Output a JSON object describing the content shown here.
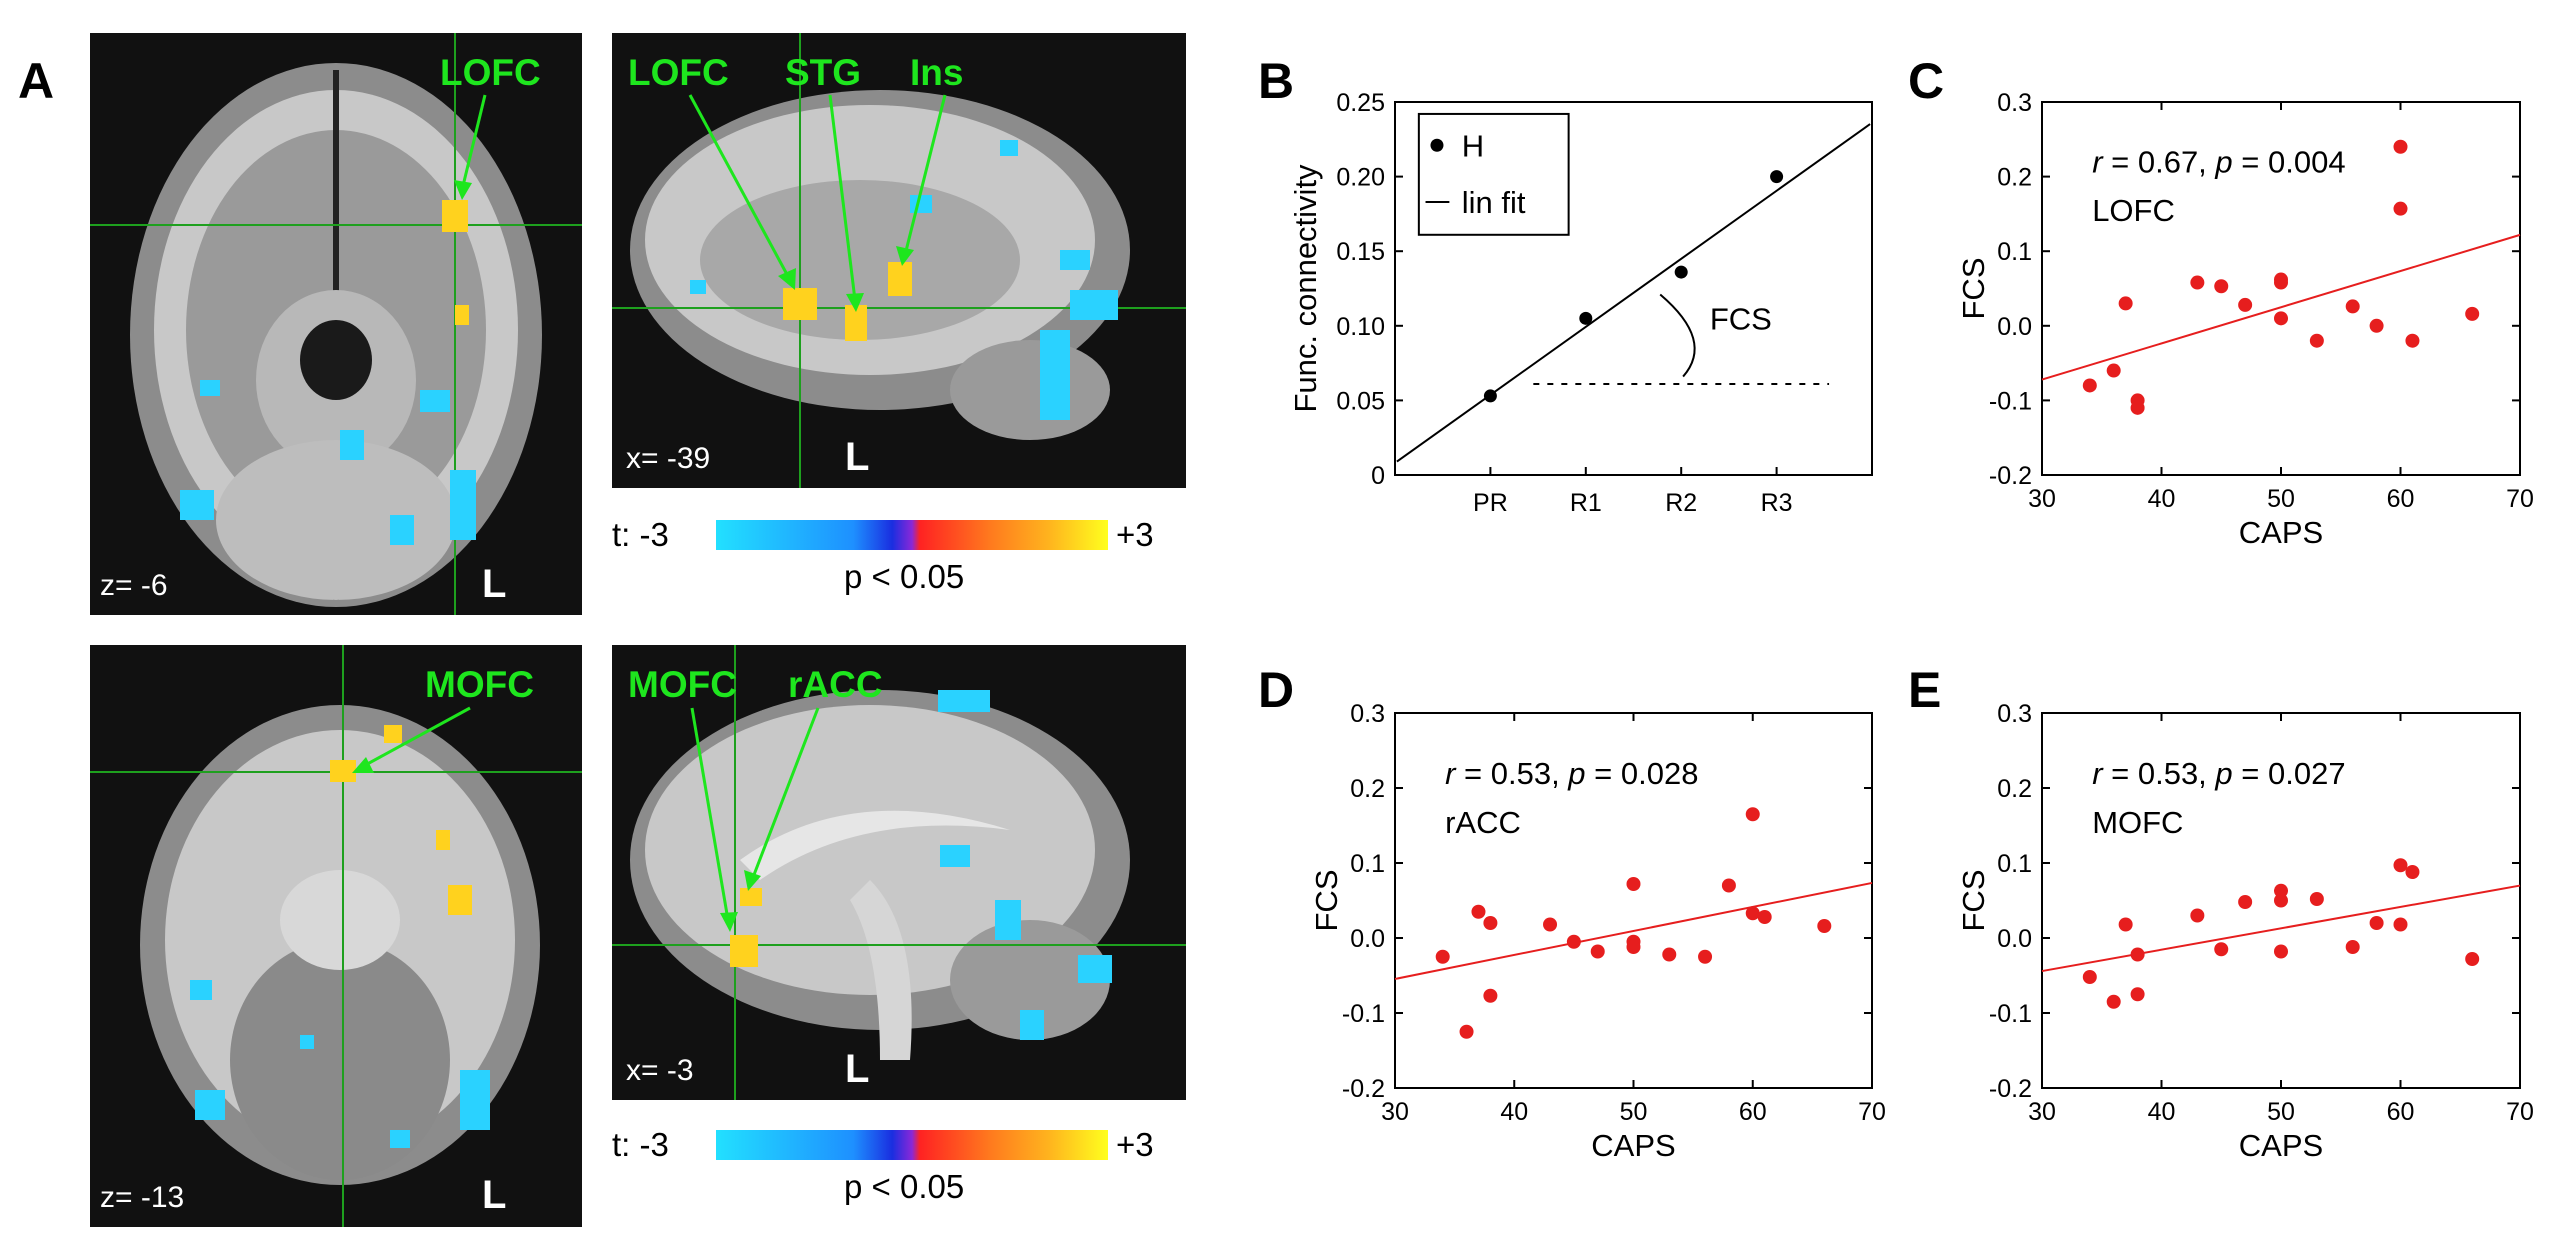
{
  "panel_labels": {
    "a": "A",
    "b": "B",
    "c": "C",
    "d": "D",
    "e": "E"
  },
  "brain": {
    "panels": [
      {
        "id": "axial1",
        "coord": "z= -6",
        "orient": "L",
        "regions": [
          "LOFC"
        ]
      },
      {
        "id": "sag1",
        "coord": "x= -39",
        "orient": "L",
        "regions": [
          "LOFC",
          "STG",
          "Ins"
        ]
      },
      {
        "id": "axial2",
        "coord": "z= -13",
        "orient": "L",
        "regions": [
          "MOFC"
        ]
      },
      {
        "id": "sag2",
        "coord": "x= -3",
        "orient": "L",
        "regions": [
          "MOFC",
          "rACC"
        ]
      }
    ],
    "colorbar": {
      "left": "t: -3",
      "right": "+3",
      "threshold": "p < 0.05",
      "colors": [
        "#22e0ff",
        "#1e90ff",
        "#1a2ee0",
        "#8a28d8",
        "#ff2222",
        "#ff7a1e",
        "#ffb41e",
        "#ffff1e"
      ]
    },
    "colors": {
      "label": "#1ee61e",
      "overlay_pos": "#ffd21e",
      "overlay_neg": "#2ad2ff",
      "bg": "#111111"
    }
  },
  "chart_data": [
    {
      "id": "B",
      "type": "line",
      "title": "",
      "xlabel": "",
      "ylabel": "Func. connectivity",
      "categories": [
        "PR",
        "R1",
        "R2",
        "R3"
      ],
      "xlim": [
        -1,
        4
      ],
      "ylim": [
        0,
        0.25
      ],
      "yticks": [
        "0",
        "0.05",
        "0.10",
        "0.15",
        "0.20",
        "0.25"
      ],
      "ytick_values": [
        0,
        0.05,
        0.1,
        0.15,
        0.2,
        0.25
      ],
      "series": [
        {
          "name": "H",
          "values": [
            0.053,
            0.105,
            0.136,
            0.2
          ]
        }
      ],
      "fit": {
        "name": "lin fit",
        "slope": 0.0456,
        "intercept": 0.0537
      },
      "baseline": 0.061,
      "annotation": "FCS",
      "legend": [
        "H",
        "lin fit"
      ]
    },
    {
      "id": "C",
      "type": "scatter",
      "xlabel": "CAPS",
      "ylabel": "FCS",
      "xlim": [
        30,
        70
      ],
      "ylim": [
        -0.2,
        0.3
      ],
      "xticks": [
        "30",
        "40",
        "50",
        "60",
        "70"
      ],
      "yticks": [
        "-0.2",
        "-0.1",
        "0.0",
        "0.1",
        "0.2",
        "0.3"
      ],
      "stats": {
        "r": "r",
        "r_text": " = 0.67, ",
        "p": "p",
        "p_text": " = 0.004"
      },
      "region": "LOFC",
      "x": [
        34,
        36,
        37,
        38,
        38,
        43,
        45,
        47,
        50,
        50,
        50,
        53,
        56,
        58,
        60,
        60,
        61,
        66
      ],
      "y": [
        -0.08,
        -0.06,
        0.03,
        -0.1,
        -0.11,
        0.058,
        0.053,
        0.028,
        0.062,
        0.058,
        0.01,
        -0.02,
        0.026,
        0.0,
        0.24,
        0.157,
        -0.02,
        0.016
      ],
      "fit": {
        "slope": 0.00485,
        "intercept": -0.2176
      }
    },
    {
      "id": "D",
      "type": "scatter",
      "xlabel": "CAPS",
      "ylabel": "FCS",
      "xlim": [
        30,
        70
      ],
      "ylim": [
        -0.2,
        0.3
      ],
      "xticks": [
        "30",
        "40",
        "50",
        "60",
        "70"
      ],
      "yticks": [
        "-0.2",
        "-0.1",
        "0.0",
        "0.1",
        "0.2",
        "0.3"
      ],
      "stats": {
        "r": "r",
        "r_text": " = 0.53, ",
        "p": "p",
        "p_text": " = 0.028"
      },
      "region": "rACC",
      "x": [
        34,
        36,
        37,
        38,
        38,
        43,
        45,
        47,
        50,
        50,
        50,
        53,
        56,
        58,
        60,
        60,
        61,
        66
      ],
      "y": [
        -0.025,
        -0.125,
        0.035,
        0.02,
        -0.077,
        0.018,
        -0.005,
        -0.018,
        0.072,
        -0.005,
        -0.012,
        -0.022,
        -0.025,
        0.07,
        0.165,
        0.033,
        0.028,
        0.016
      ],
      "fit": {
        "slope": 0.0032,
        "intercept": -0.1506
      }
    },
    {
      "id": "E",
      "type": "scatter",
      "xlabel": "CAPS",
      "ylabel": "FCS",
      "xlim": [
        30,
        70
      ],
      "ylim": [
        -0.2,
        0.3
      ],
      "xticks": [
        "30",
        "40",
        "50",
        "60",
        "70"
      ],
      "yticks": [
        "-0.2",
        "-0.1",
        "0.0",
        "0.1",
        "0.2",
        "0.3"
      ],
      "stats": {
        "r": "r",
        "r_text": " = 0.53, ",
        "p": "p",
        "p_text": " = 0.027"
      },
      "region": "MOFC",
      "x": [
        34,
        36,
        37,
        38,
        38,
        43,
        45,
        47,
        50,
        50,
        50,
        53,
        56,
        58,
        60,
        60,
        61,
        66
      ],
      "y": [
        -0.052,
        -0.085,
        0.018,
        -0.022,
        -0.075,
        0.03,
        -0.015,
        0.048,
        0.063,
        0.05,
        -0.018,
        0.052,
        -0.012,
        0.02,
        0.097,
        0.018,
        0.088,
        -0.028
      ],
      "fit": {
        "slope": 0.00285,
        "intercept": -0.1296
      }
    }
  ],
  "colors": {
    "scatter": "#e61e1e",
    "fit": "#e61e1e",
    "axis": "#000000"
  }
}
